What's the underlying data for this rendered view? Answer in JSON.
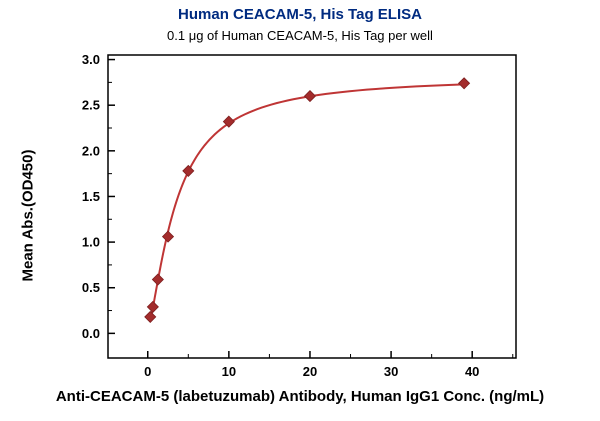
{
  "chart_data": {
    "type": "scatter",
    "title": "Human CEACAM-5, His Tag ELISA",
    "subtitle": "0.1 μg of Human CEACAM-5, His Tag per well",
    "xlabel": "Anti-CEACAM-5 (labetuzumab) Antibody, Human IgG1 Conc. (ng/mL)",
    "ylabel": "Mean Abs.(OD450)",
    "x": [
      0.31,
      0.63,
      1.25,
      2.5,
      5,
      10,
      20,
      39
    ],
    "y": [
      0.18,
      0.29,
      0.59,
      1.06,
      1.78,
      2.32,
      2.6,
      2.74
    ],
    "fit_4pl": {
      "bottom": 0.05,
      "top": 2.82,
      "ec50": 3.5,
      "hill": 1.4,
      "x_start": 0.29,
      "x_end": 39
    },
    "xlim": [
      -4.9,
      45.4
    ],
    "ylim": [
      -0.27,
      3.05
    ],
    "x_ticks": [
      0,
      10,
      20,
      30,
      40
    ],
    "x_tick_labels": [
      "0",
      "10",
      "20",
      "30",
      "40"
    ],
    "x_minor_ticks": [
      5,
      15,
      25,
      35,
      45
    ],
    "y_ticks": [
      0,
      0.5,
      1,
      1.5,
      2,
      2.5,
      3
    ],
    "y_tick_labels": [
      "0.0",
      "0.5",
      "1.0",
      "1.5",
      "2.0",
      "2.5",
      "3.0"
    ],
    "y_minor_ticks": [
      0.25,
      0.75,
      1.25,
      1.75,
      2.25,
      2.75
    ],
    "grid": "off",
    "legend": "none",
    "colors": {
      "title": "#002b80",
      "line": "#bf3535",
      "marker": "#a32c2c",
      "axis": "#000000"
    }
  }
}
